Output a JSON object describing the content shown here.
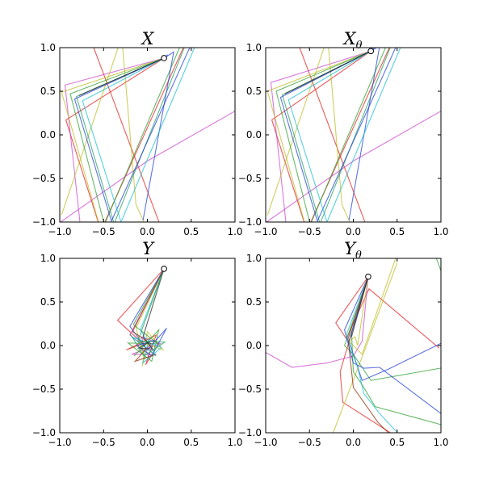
{
  "chart_data": [
    {
      "type": "line",
      "title": "X",
      "title_subscript": "",
      "xlim": [
        -1,
        1
      ],
      "ylim": [
        -1,
        1
      ],
      "x_ticks": [
        "−1.0",
        "−0.5",
        "0.0",
        "0.5",
        "1.0"
      ],
      "y_ticks": [
        "1.0",
        "0.5",
        "0.0",
        "−0.5",
        "−1.0"
      ],
      "grid": false,
      "origin": {
        "x": 0.19,
        "y": 0.88
      },
      "series": [
        {
          "color": "#e31a1c",
          "points": [
            [
              0.19,
              0.88
            ],
            [
              -0.93,
              0.17
            ],
            [
              -0.53,
              -1.1
            ],
            [
              0.5,
              1.2
            ]
          ]
        },
        {
          "color": "#e31a1c",
          "points": [
            [
              -0.65,
              1.1
            ],
            [
              0.17,
              -1.1
            ]
          ]
        },
        {
          "color": "#cc44cc",
          "points": [
            [
              0.19,
              0.88
            ],
            [
              -0.94,
              0.57
            ],
            [
              -0.77,
              -1.0
            ]
          ]
        },
        {
          "color": "#cc44cc",
          "points": [
            [
              1.05,
              0.3
            ],
            [
              0.0,
              -0.3
            ],
            [
              -0.99,
              -1.0
            ]
          ]
        },
        {
          "color": "#bcbd22",
          "points": [
            [
              0.19,
              0.88
            ],
            [
              -0.98,
              0.49
            ],
            [
              -0.56,
              -0.99
            ]
          ]
        },
        {
          "color": "#bcbd22",
          "points": [
            [
              -0.3,
              1.1
            ],
            [
              -0.98,
              -0.92
            ]
          ]
        },
        {
          "color": "#bcbd22",
          "points": [
            [
              -0.29,
              1.1
            ],
            [
              -0.13,
              -0.8
            ],
            [
              -0.04,
              -1.0
            ]
          ]
        },
        {
          "color": "#2ca02c",
          "points": [
            [
              0.19,
              0.88
            ],
            [
              -0.88,
              0.47
            ],
            [
              -0.49,
              -1.03
            ],
            [
              0.43,
              1.15
            ]
          ]
        },
        {
          "color": "#1f9e5e",
          "points": [
            [
              0.19,
              0.88
            ],
            [
              -0.81,
              0.44
            ],
            [
              -0.38,
              -1.02
            ],
            [
              0.48,
              1.15
            ]
          ]
        },
        {
          "color": "#1f3fd6",
          "points": [
            [
              0.19,
              0.88
            ],
            [
              -0.83,
              0.41
            ],
            [
              -0.41,
              -0.99
            ],
            [
              0.55,
              1.15
            ]
          ]
        },
        {
          "color": "#1f3fd6",
          "points": [
            [
              0.23,
              0.92
            ],
            [
              0.19,
              0.88
            ],
            [
              0.3,
              0.95
            ],
            [
              -0.05,
              -0.98
            ]
          ]
        },
        {
          "color": "#17becf",
          "points": [
            [
              0.19,
              0.88
            ],
            [
              -0.74,
              0.39
            ],
            [
              -0.3,
              -1.0
            ],
            [
              0.6,
              1.15
            ]
          ]
        },
        {
          "color": "#222222",
          "points": [
            [
              0.19,
              0.88
            ],
            [
              -0.78,
              0.45
            ]
          ]
        }
      ]
    },
    {
      "type": "line",
      "title": "X",
      "title_subscript": "θ",
      "xlim": [
        -1,
        1
      ],
      "ylim": [
        -1,
        1
      ],
      "x_ticks": [
        "−1.0",
        "−0.5",
        "0.0",
        "0.5",
        "1.0"
      ],
      "y_ticks": [
        "1.0",
        "0.5",
        "0.0",
        "−0.5",
        "−1.0"
      ],
      "grid": false,
      "origin": {
        "x": 0.2,
        "y": 0.96
      },
      "series": [
        {
          "color": "#e31a1c",
          "points": [
            [
              0.2,
              0.96
            ],
            [
              -0.93,
              0.17
            ],
            [
              -0.53,
              -1.1
            ],
            [
              0.5,
              1.2
            ]
          ]
        },
        {
          "color": "#e31a1c",
          "points": [
            [
              -0.65,
              1.1
            ],
            [
              0.17,
              -1.1
            ]
          ]
        },
        {
          "color": "#cc44cc",
          "points": [
            [
              0.2,
              0.96
            ],
            [
              -0.94,
              0.6
            ],
            [
              -0.77,
              -1.0
            ]
          ]
        },
        {
          "color": "#cc44cc",
          "points": [
            [
              1.05,
              0.3
            ],
            [
              0.0,
              -0.3
            ],
            [
              -0.99,
              -1.0
            ]
          ]
        },
        {
          "color": "#bcbd22",
          "points": [
            [
              0.2,
              0.96
            ],
            [
              -0.98,
              0.5
            ],
            [
              -0.56,
              -0.99
            ]
          ]
        },
        {
          "color": "#bcbd22",
          "points": [
            [
              -0.3,
              1.1
            ],
            [
              -0.98,
              -0.92
            ]
          ]
        },
        {
          "color": "#bcbd22",
          "points": [
            [
              -0.29,
              1.1
            ],
            [
              -0.13,
              -0.8
            ],
            [
              -0.04,
              -1.0
            ]
          ]
        },
        {
          "color": "#2ca02c",
          "points": [
            [
              0.2,
              0.96
            ],
            [
              -0.88,
              0.5
            ],
            [
              -0.49,
              -1.03
            ],
            [
              0.43,
              1.15
            ]
          ]
        },
        {
          "color": "#1f9e5e",
          "points": [
            [
              0.2,
              0.96
            ],
            [
              -0.81,
              0.46
            ],
            [
              -0.38,
              -1.02
            ],
            [
              0.48,
              1.15
            ]
          ]
        },
        {
          "color": "#1f3fd6",
          "points": [
            [
              0.2,
              0.96
            ],
            [
              -0.83,
              0.43
            ],
            [
              -0.41,
              -0.99
            ],
            [
              0.55,
              1.15
            ]
          ]
        },
        {
          "color": "#1f3fd6",
          "points": [
            [
              0.24,
              1.0
            ],
            [
              0.2,
              0.96
            ],
            [
              0.3,
              1.02
            ],
            [
              -0.05,
              -0.98
            ]
          ]
        },
        {
          "color": "#17becf",
          "points": [
            [
              0.2,
              0.96
            ],
            [
              -0.74,
              0.4
            ],
            [
              -0.3,
              -1.0
            ],
            [
              0.6,
              1.15
            ]
          ]
        },
        {
          "color": "#222222",
          "points": [
            [
              0.2,
              0.96
            ],
            [
              -0.78,
              0.47
            ]
          ]
        }
      ]
    },
    {
      "type": "line",
      "title": "Y",
      "title_subscript": "",
      "xlim": [
        -1,
        1
      ],
      "ylim": [
        -1,
        1
      ],
      "x_ticks": [
        "−1.0",
        "−0.5",
        "0.0",
        "0.5",
        "1.0"
      ],
      "y_ticks": [
        "1.0",
        "0.5",
        "0.0",
        "−0.5",
        "−1.0"
      ],
      "grid": false,
      "origin": {
        "x": 0.19,
        "y": 0.88
      },
      "series": [
        {
          "color": "#e31a1c",
          "points": [
            [
              0.19,
              0.88
            ],
            [
              -0.34,
              0.29
            ],
            [
              -0.05,
              0.02
            ],
            [
              -0.24,
              -0.05
            ],
            [
              0.1,
              0.12
            ],
            [
              -0.02,
              -0.22
            ],
            [
              0.08,
              -0.06
            ]
          ]
        },
        {
          "color": "#cc44cc",
          "points": [
            [
              0.19,
              0.88
            ],
            [
              -0.2,
              0.12
            ],
            [
              0.08,
              -0.1
            ],
            [
              -0.18,
              -0.1
            ],
            [
              0.15,
              0.02
            ],
            [
              -0.07,
              0.1
            ],
            [
              0.02,
              -0.15
            ]
          ]
        },
        {
          "color": "#bcbd22",
          "points": [
            [
              0.19,
              0.88
            ],
            [
              -0.13,
              0.2
            ],
            [
              -0.02,
              -0.16
            ],
            [
              -0.1,
              0.05
            ],
            [
              0.18,
              -0.05
            ],
            [
              0.0,
              0.16
            ],
            [
              -0.06,
              -0.24
            ]
          ]
        },
        {
          "color": "#2ca02c",
          "points": [
            [
              0.19,
              0.88
            ],
            [
              -0.16,
              0.24
            ],
            [
              0.12,
              0.02
            ],
            [
              -0.22,
              0.03
            ],
            [
              0.05,
              -0.18
            ],
            [
              0.13,
              0.18
            ],
            [
              -0.15,
              -0.12
            ]
          ]
        },
        {
          "color": "#1f3fd6",
          "points": [
            [
              0.19,
              0.88
            ],
            [
              -0.2,
              0.22
            ],
            [
              0.0,
              -0.05
            ],
            [
              0.22,
              0.2
            ],
            [
              0.05,
              -0.12
            ],
            [
              -0.12,
              0.0
            ],
            [
              0.08,
              0.06
            ]
          ]
        },
        {
          "color": "#17becf",
          "points": [
            [
              0.19,
              0.88
            ],
            [
              -0.08,
              0.18
            ],
            [
              0.1,
              -0.12
            ],
            [
              -0.18,
              0.1
            ],
            [
              0.16,
              -0.02
            ],
            [
              -0.05,
              -0.2
            ],
            [
              0.02,
              0.08
            ]
          ]
        },
        {
          "color": "#222222",
          "points": [
            [
              0.19,
              0.88
            ],
            [
              -0.05,
              0.1
            ],
            [
              0.06,
              -0.04
            ],
            [
              -0.1,
              -0.03
            ],
            [
              0.04,
              0.05
            ]
          ]
        },
        {
          "color": "#8c2d04",
          "points": [
            [
              0.19,
              0.88
            ],
            [
              -0.17,
              0.16
            ],
            [
              0.04,
              0.02
            ],
            [
              -0.14,
              -0.18
            ],
            [
              0.1,
              -0.1
            ]
          ]
        },
        {
          "color": "#1f9e5e",
          "points": [
            [
              0.19,
              0.88
            ],
            [
              -0.11,
              0.05
            ],
            [
              0.2,
              0.04
            ],
            [
              -0.04,
              -0.12
            ],
            [
              -0.2,
              0.14
            ]
          ]
        }
      ]
    },
    {
      "type": "line",
      "title": "Y",
      "title_subscript": "θ",
      "xlim": [
        -1,
        1
      ],
      "ylim": [
        -1,
        1
      ],
      "x_ticks": [
        "−1.0",
        "−0.5",
        "0.0",
        "0.5",
        "1.0"
      ],
      "y_ticks": [
        "1.0",
        "0.5",
        "0.0",
        "−0.5",
        "−1.0"
      ],
      "grid": false,
      "origin": {
        "x": 0.17,
        "y": 0.79
      },
      "series": [
        {
          "color": "#e31a1c",
          "points": [
            [
              0.17,
              0.79
            ],
            [
              -0.2,
              0.26
            ],
            [
              -0.08,
              0.08
            ],
            [
              0.18,
              0.65
            ],
            [
              0.98,
              -0.03
            ]
          ]
        },
        {
          "color": "#e31a1c",
          "points": [
            [
              0.17,
              0.79
            ],
            [
              -0.15,
              -0.3
            ],
            [
              -0.12,
              -0.65
            ],
            [
              0.5,
              -1.05
            ]
          ]
        },
        {
          "color": "#cc44cc",
          "points": [
            [
              -1.05,
              -0.05
            ],
            [
              -0.7,
              -0.25
            ],
            [
              -0.3,
              -0.2
            ],
            [
              0.0,
              -0.12
            ],
            [
              0.1,
              0.05
            ],
            [
              0.17,
              0.79
            ]
          ]
        },
        {
          "color": "#bcbd22",
          "points": [
            [
              0.17,
              0.79
            ],
            [
              0.05,
              0.0
            ],
            [
              0.02,
              0.1
            ],
            [
              -0.05,
              0.05
            ],
            [
              0.1,
              -0.1
            ],
            [
              0.5,
              1.05
            ]
          ]
        },
        {
          "color": "#bcbd22",
          "points": [
            [
              0.5,
              0.95
            ],
            [
              0.12,
              -0.08
            ],
            [
              -0.25,
              -1.05
            ]
          ]
        },
        {
          "color": "#2ca02c",
          "points": [
            [
              0.17,
              0.79
            ],
            [
              -0.02,
              0.15
            ],
            [
              0.0,
              -0.3
            ],
            [
              0.1,
              -0.45
            ],
            [
              0.25,
              -0.7
            ],
            [
              1.05,
              -0.92
            ]
          ]
        },
        {
          "color": "#2ca02c",
          "points": [
            [
              0.17,
              0.79
            ],
            [
              -0.1,
              0.0
            ],
            [
              0.0,
              -0.1
            ],
            [
              0.2,
              -0.4
            ],
            [
              1.05,
              -0.25
            ]
          ]
        },
        {
          "color": "#2ca02c",
          "points": [
            [
              0.93,
              1.05
            ],
            [
              1.05,
              0.72
            ]
          ]
        },
        {
          "color": "#1f3fd6",
          "points": [
            [
              0.17,
              0.79
            ],
            [
              -0.1,
              0.18
            ],
            [
              0.0,
              -0.2
            ],
            [
              0.12,
              -0.26
            ],
            [
              0.3,
              -0.25
            ],
            [
              1.0,
              -0.78
            ],
            [
              1.05,
              -0.7
            ]
          ]
        },
        {
          "color": "#1f3fd6",
          "points": [
            [
              0.17,
              0.79
            ],
            [
              -0.05,
              0.05
            ],
            [
              0.1,
              -0.4
            ],
            [
              0.4,
              -0.27
            ],
            [
              1.05,
              0.05
            ]
          ]
        },
        {
          "color": "#17becf",
          "points": [
            [
              0.17,
              0.79
            ],
            [
              -0.08,
              0.12
            ],
            [
              0.05,
              -0.25
            ],
            [
              0.12,
              -0.55
            ],
            [
              0.3,
              -0.78
            ],
            [
              0.55,
              -1.05
            ]
          ]
        },
        {
          "color": "#8c2d04",
          "points": [
            [
              0.17,
              0.79
            ],
            [
              -0.06,
              0.08
            ],
            [
              0.0,
              -0.48
            ],
            [
              0.28,
              -0.88
            ],
            [
              0.45,
              -1.05
            ]
          ]
        },
        {
          "color": "#222222",
          "points": [
            [
              0.17,
              0.79
            ],
            [
              -0.02,
              0.1
            ]
          ]
        }
      ]
    }
  ]
}
